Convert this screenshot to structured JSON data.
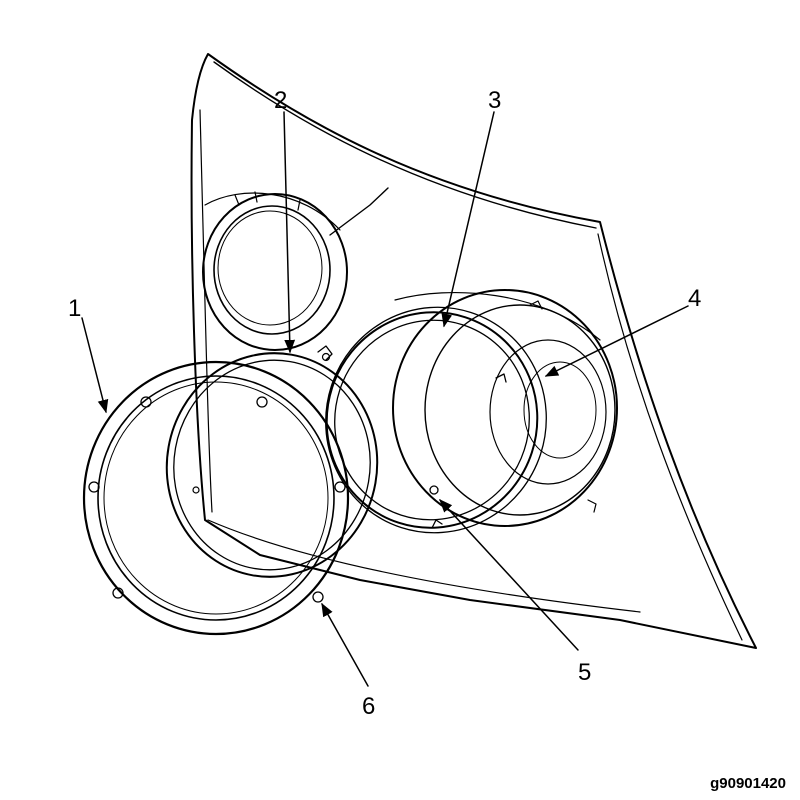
{
  "callouts": [
    {
      "label": "1",
      "part": "outer-trim-ring"
    },
    {
      "label": "2",
      "part": "retaining-ring"
    },
    {
      "label": "3",
      "part": "headlamp-bulb-lens"
    },
    {
      "label": "4",
      "part": "adjuster-tab"
    },
    {
      "label": "5",
      "part": "lamp-clip"
    },
    {
      "label": "6",
      "part": "ring-screw"
    }
  ],
  "figure_id": "g90901420",
  "colors": {
    "line": "#000000",
    "background": "#ffffff"
  }
}
